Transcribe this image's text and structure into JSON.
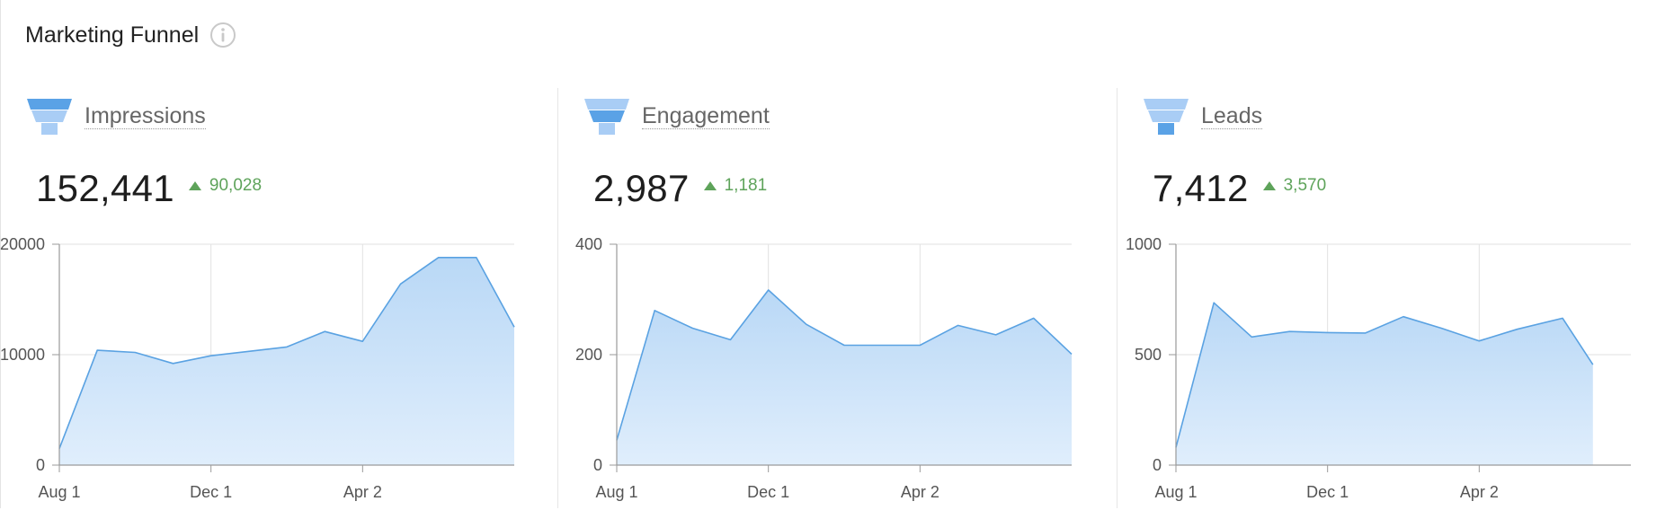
{
  "header": {
    "title": "Marketing Funnel",
    "info_icon": "info-icon"
  },
  "colors": {
    "line": "#5aa2e2",
    "fill_top": "#b9d8f6",
    "fill_bottom": "#e0eefc",
    "funnel_light": "#a9cdf5",
    "funnel_dark": "#5aa2e6",
    "delta": "#5ea35a"
  },
  "panels": [
    {
      "label": "Impressions",
      "value": "152,441",
      "delta": "90,028",
      "funnel_stage": 0
    },
    {
      "label": "Engagement",
      "value": "2,987",
      "delta": "1,181",
      "funnel_stage": 1
    },
    {
      "label": "Leads",
      "value": "7,412",
      "delta": "3,570",
      "funnel_stage": 2
    }
  ],
  "chart_data": [
    {
      "type": "area",
      "title": "Impressions",
      "x_ticks": [
        "Aug 1",
        "Dec 1",
        "Apr 2"
      ],
      "x_tick_positions": [
        0,
        4,
        8
      ],
      "x": [
        0,
        1,
        2,
        3,
        4,
        5,
        6,
        7,
        8,
        9,
        10,
        11,
        12
      ],
      "values": [
        1500,
        10400,
        10200,
        9200,
        9900,
        10300,
        10700,
        12100,
        11200,
        16400,
        18800,
        18800,
        12500
      ],
      "y_ticks": [
        "0",
        "10000",
        "20000"
      ],
      "y_tick_values": [
        0,
        10000,
        20000
      ],
      "ylim": [
        0,
        20000
      ],
      "grid": true
    },
    {
      "type": "area",
      "title": "Engagement",
      "x_ticks": [
        "Aug 1",
        "Dec 1",
        "Apr 2"
      ],
      "x_tick_positions": [
        0,
        4,
        8
      ],
      "x": [
        0,
        1,
        2,
        3,
        4,
        5,
        6,
        7,
        8,
        9,
        10,
        11,
        12
      ],
      "values": [
        45,
        280,
        248,
        227,
        317,
        255,
        217,
        217,
        217,
        253,
        236,
        266,
        201
      ],
      "y_ticks": [
        "0",
        "200",
        "400"
      ],
      "y_tick_values": [
        0,
        200,
        400
      ],
      "ylim": [
        0,
        400
      ],
      "grid": true
    },
    {
      "type": "area",
      "title": "Leads",
      "x_ticks": [
        "Aug 1",
        "Dec 1",
        "Apr 2"
      ],
      "x_tick_positions": [
        0,
        4,
        8
      ],
      "x": [
        0,
        1,
        2,
        3,
        4,
        5,
        6,
        7,
        8,
        9,
        10,
        11,
        12
      ],
      "values": [
        80,
        735,
        580,
        605,
        600,
        598,
        672,
        620,
        562,
        615,
        665,
        455
      ],
      "x_values": [
        0,
        1,
        2,
        3,
        4,
        5,
        6,
        7,
        8,
        9,
        10.2,
        11
      ],
      "y_ticks": [
        "0",
        "500",
        "1000"
      ],
      "y_tick_values": [
        0,
        500,
        1000
      ],
      "ylim": [
        0,
        1000
      ],
      "grid": true
    }
  ]
}
